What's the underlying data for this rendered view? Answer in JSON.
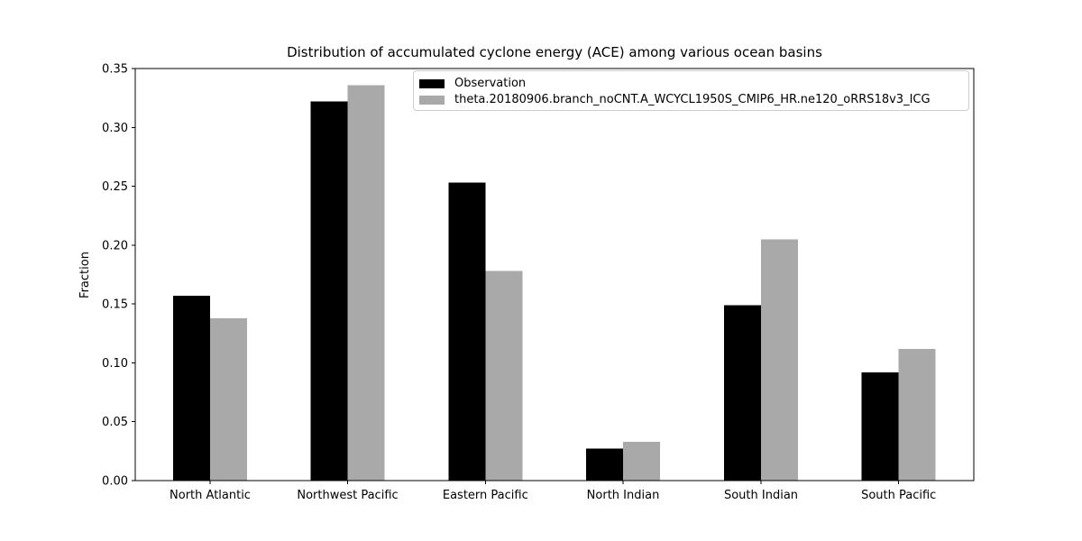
{
  "chart_data": {
    "type": "bar",
    "title": "Distribution of accumulated cyclone energy (ACE) among various ocean basins",
    "ylabel": "Fraction",
    "xlabel": "",
    "ylim": [
      0,
      0.35
    ],
    "yticks": [
      0,
      0.05,
      0.1,
      0.15,
      0.2,
      0.25,
      0.3,
      0.35
    ],
    "ytick_labels": [
      "0.00",
      "0.05",
      "0.10",
      "0.15",
      "0.20",
      "0.25",
      "0.30",
      "0.35"
    ],
    "categories": [
      "North Atlantic",
      "Northwest Pacific",
      "Eastern Pacific",
      "North Indian",
      "South Indian",
      "South Pacific"
    ],
    "series": [
      {
        "name": "Observation",
        "color": "#000000",
        "values": [
          0.157,
          0.322,
          0.253,
          0.027,
          0.149,
          0.092
        ]
      },
      {
        "name": "theta.20180906.branch_noCNT.A_WCYCL1950S_CMIP6_HR.ne120_oRRS18v3_ICG",
        "color": "#a9a9a9",
        "values": [
          0.138,
          0.336,
          0.178,
          0.033,
          0.205,
          0.112
        ]
      }
    ],
    "legend_position": "upper center inside plot",
    "grid": false,
    "background_color": "#ffffff",
    "axis_color": "#000000",
    "legend_border_color": "#cccccc"
  }
}
